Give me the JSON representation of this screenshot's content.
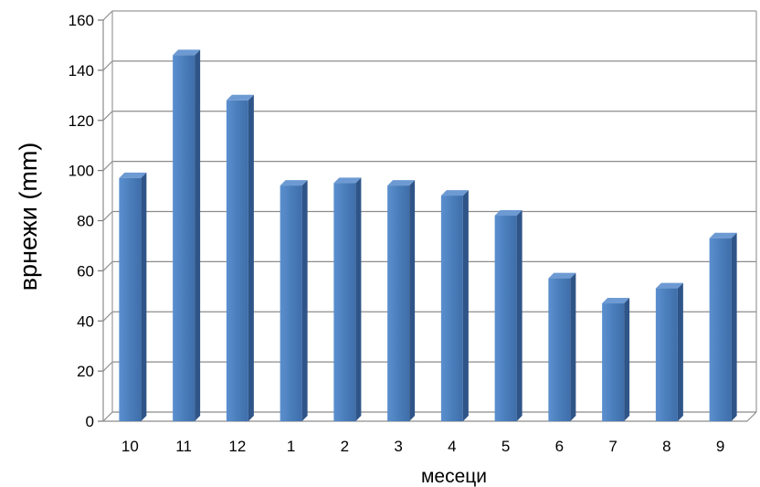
{
  "chart_data": {
    "type": "bar",
    "title": "",
    "xlabel": "месеци",
    "ylabel": "врнежи (mm)",
    "ylim": [
      0,
      160
    ],
    "yticks": [
      0,
      20,
      40,
      60,
      80,
      100,
      120,
      140,
      160
    ],
    "grid": true,
    "legend": "none",
    "bar_color": "#4a7ebb",
    "categories": [
      "10",
      "11",
      "12",
      "1",
      "2",
      "3",
      "4",
      "5",
      "6",
      "7",
      "8",
      "9"
    ],
    "values": [
      97,
      146,
      128,
      94,
      95,
      94,
      90,
      82,
      57,
      47,
      53,
      73
    ]
  }
}
